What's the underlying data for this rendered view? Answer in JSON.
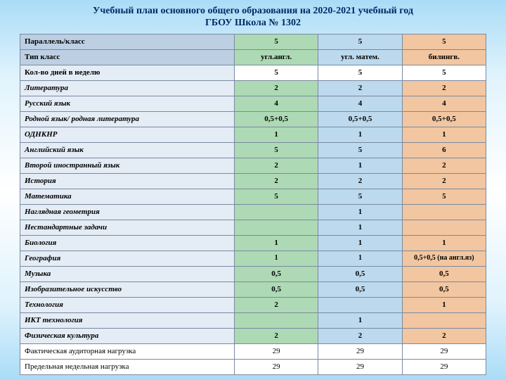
{
  "title_line1": "Учебный план основного общего образования   на 2020-2021 учебный год",
  "title_line2": "ГБОУ Школа № 1302",
  "header": {
    "label": "Параллель/класс",
    "c1": "5",
    "c2": "5",
    "c3": "5"
  },
  "type_row": {
    "label": "Тип класс",
    "c1": "угл.англ.",
    "c2": "угл. матем.",
    "c3": "билингв."
  },
  "days_row": {
    "label": "Кол-во дней в неделю",
    "c1": "5",
    "c2": "5",
    "c3": "5"
  },
  "rows": [
    {
      "label": "Литература",
      "c1": "2",
      "c2": "2",
      "c3": "2"
    },
    {
      "label": "Русский язык",
      "c1": "4",
      "c2": "4",
      "c3": "4"
    },
    {
      "label": "Родной язык/ родная литература",
      "c1": "0,5+0,5",
      "c2": "0,5+0,5",
      "c3": "0,5+0,5"
    },
    {
      "label": "ОДНКНР",
      "c1": "1",
      "c2": "1",
      "c3": "1"
    },
    {
      "label": "Английский язык",
      "c1": "5",
      "c2": "5",
      "c3": "6"
    },
    {
      "label": "Второй иностранный язык",
      "c1": "2",
      "c2": "1",
      "c3": "2"
    },
    {
      "label": "История",
      "c1": "2",
      "c2": "2",
      "c3": "2"
    },
    {
      "label": "Математика",
      "c1": "5",
      "c2": "5",
      "c3": "5"
    },
    {
      "label": "Наглядная геометрия",
      "c1": "",
      "c2": "1",
      "c3": ""
    },
    {
      "label": "Нестандартные задачи",
      "c1": "",
      "c2": "1",
      "c3": ""
    },
    {
      "label": "Биология",
      "c1": "1",
      "c2": "1",
      "c3": "1"
    },
    {
      "label": "География",
      "c1": "1",
      "c2": "1",
      "c3": "0,5+0,5 (на англ.яз)"
    },
    {
      "label": "Музыка",
      "c1": "0,5",
      "c2": "0,5",
      "c3": "0,5"
    },
    {
      "label": "Изобразительное искусство",
      "c1": "0,5",
      "c2": "0,5",
      "c3": "0,5"
    },
    {
      "label": "Технология",
      "c1": "2",
      "c2": "",
      "c3": "1"
    },
    {
      "label": "ИКТ технология",
      "c1": "",
      "c2": "1",
      "c3": ""
    },
    {
      "label": "Физическая культура",
      "c1": "2",
      "c2": "2",
      "c3": "2"
    }
  ],
  "footer": [
    {
      "label": "Фактическая аудиторная нагрузка",
      "c1": "29",
      "c2": "29",
      "c3": "29"
    },
    {
      "label": "Предельная недельная нагрузка",
      "c1": "29",
      "c2": "29",
      "c3": "29"
    }
  ]
}
